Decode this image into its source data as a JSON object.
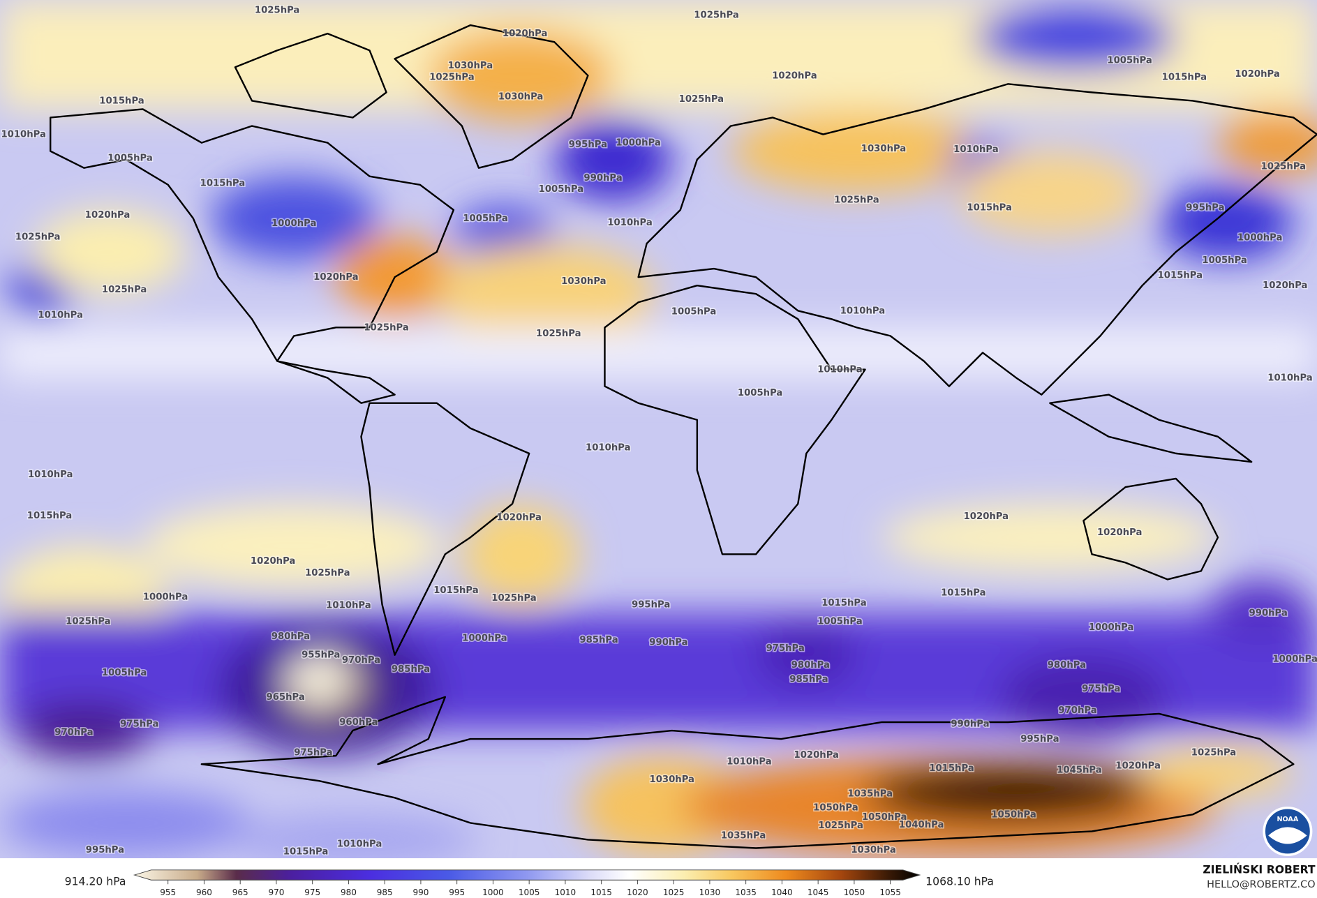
{
  "map": {
    "contour_labels": [
      "1025hPa",
      "1025hPa",
      "1020hPa",
      "1030hPa",
      "1025hPa",
      "1030hPa",
      "1025hPa",
      "1020hPa",
      "1005hPa",
      "1015hPa",
      "1020hPa",
      "1015hPa",
      "1010hPa",
      "1005hPa",
      "1015hPa",
      "1020hPa",
      "1025hPa",
      "1000hPa",
      "1005hPa",
      "1000hPa",
      "995hPa",
      "990hPa",
      "1005hPa",
      "1010hPa",
      "1030hPa",
      "1025hPa",
      "1010hPa",
      "1015hPa",
      "1025hPa",
      "995hPa",
      "1000hPa",
      "1005hPa",
      "1015hPa",
      "1020hPa",
      "1025hPa",
      "1010hPa",
      "1020hPa",
      "1025hPa",
      "1030hPa",
      "1025hPa",
      "1005hPa",
      "1010hPa",
      "1010hPa",
      "1005hPa",
      "1010hPa",
      "1010hPa",
      "1010hPa",
      "1015hPa",
      "1020hPa",
      "1020hPa",
      "1020hPa",
      "1020hPa",
      "1025hPa",
      "1015hPa",
      "1025hPa",
      "1010hPa",
      "1025hPa",
      "1005hPa",
      "1000hPa",
      "980hPa",
      "955hPa",
      "970hPa",
      "965hPa",
      "960hPa",
      "975hPa",
      "970hPa",
      "975hPa",
      "985hPa",
      "1000hPa",
      "995hPa",
      "985hPa",
      "990hPa",
      "975hPa",
      "980hPa",
      "985hPa",
      "1005hPa",
      "1015hPa",
      "1015hPa",
      "990hPa",
      "1000hPa",
      "1000hPa",
      "980hPa",
      "975hPa",
      "970hPa",
      "990hPa",
      "995hPa",
      "1010hPa",
      "1020hPa",
      "1025hPa",
      "1015hPa",
      "1030hPa",
      "1035hPa",
      "1050hPa",
      "1050hPa",
      "1040hPa",
      "1050hPa",
      "1045hPa",
      "1020hPa",
      "1025hPa",
      "1035hPa",
      "1030hPa",
      "1010hPa",
      "1015hPa",
      "995hPa"
    ]
  },
  "colorbar": {
    "min_label": "914.20 hPa",
    "max_label": "1068.10 hPa",
    "ticks": [
      955,
      960,
      965,
      970,
      975,
      980,
      985,
      990,
      995,
      1000,
      1005,
      1010,
      1015,
      1020,
      1025,
      1030,
      1035,
      1040,
      1045,
      1050,
      1055
    ]
  },
  "credit": {
    "name": "ZIELIŃSKI ROBERT",
    "contact": "HELLO@ROBERTZ.CO"
  },
  "logo": {
    "text": "NOAA"
  }
}
